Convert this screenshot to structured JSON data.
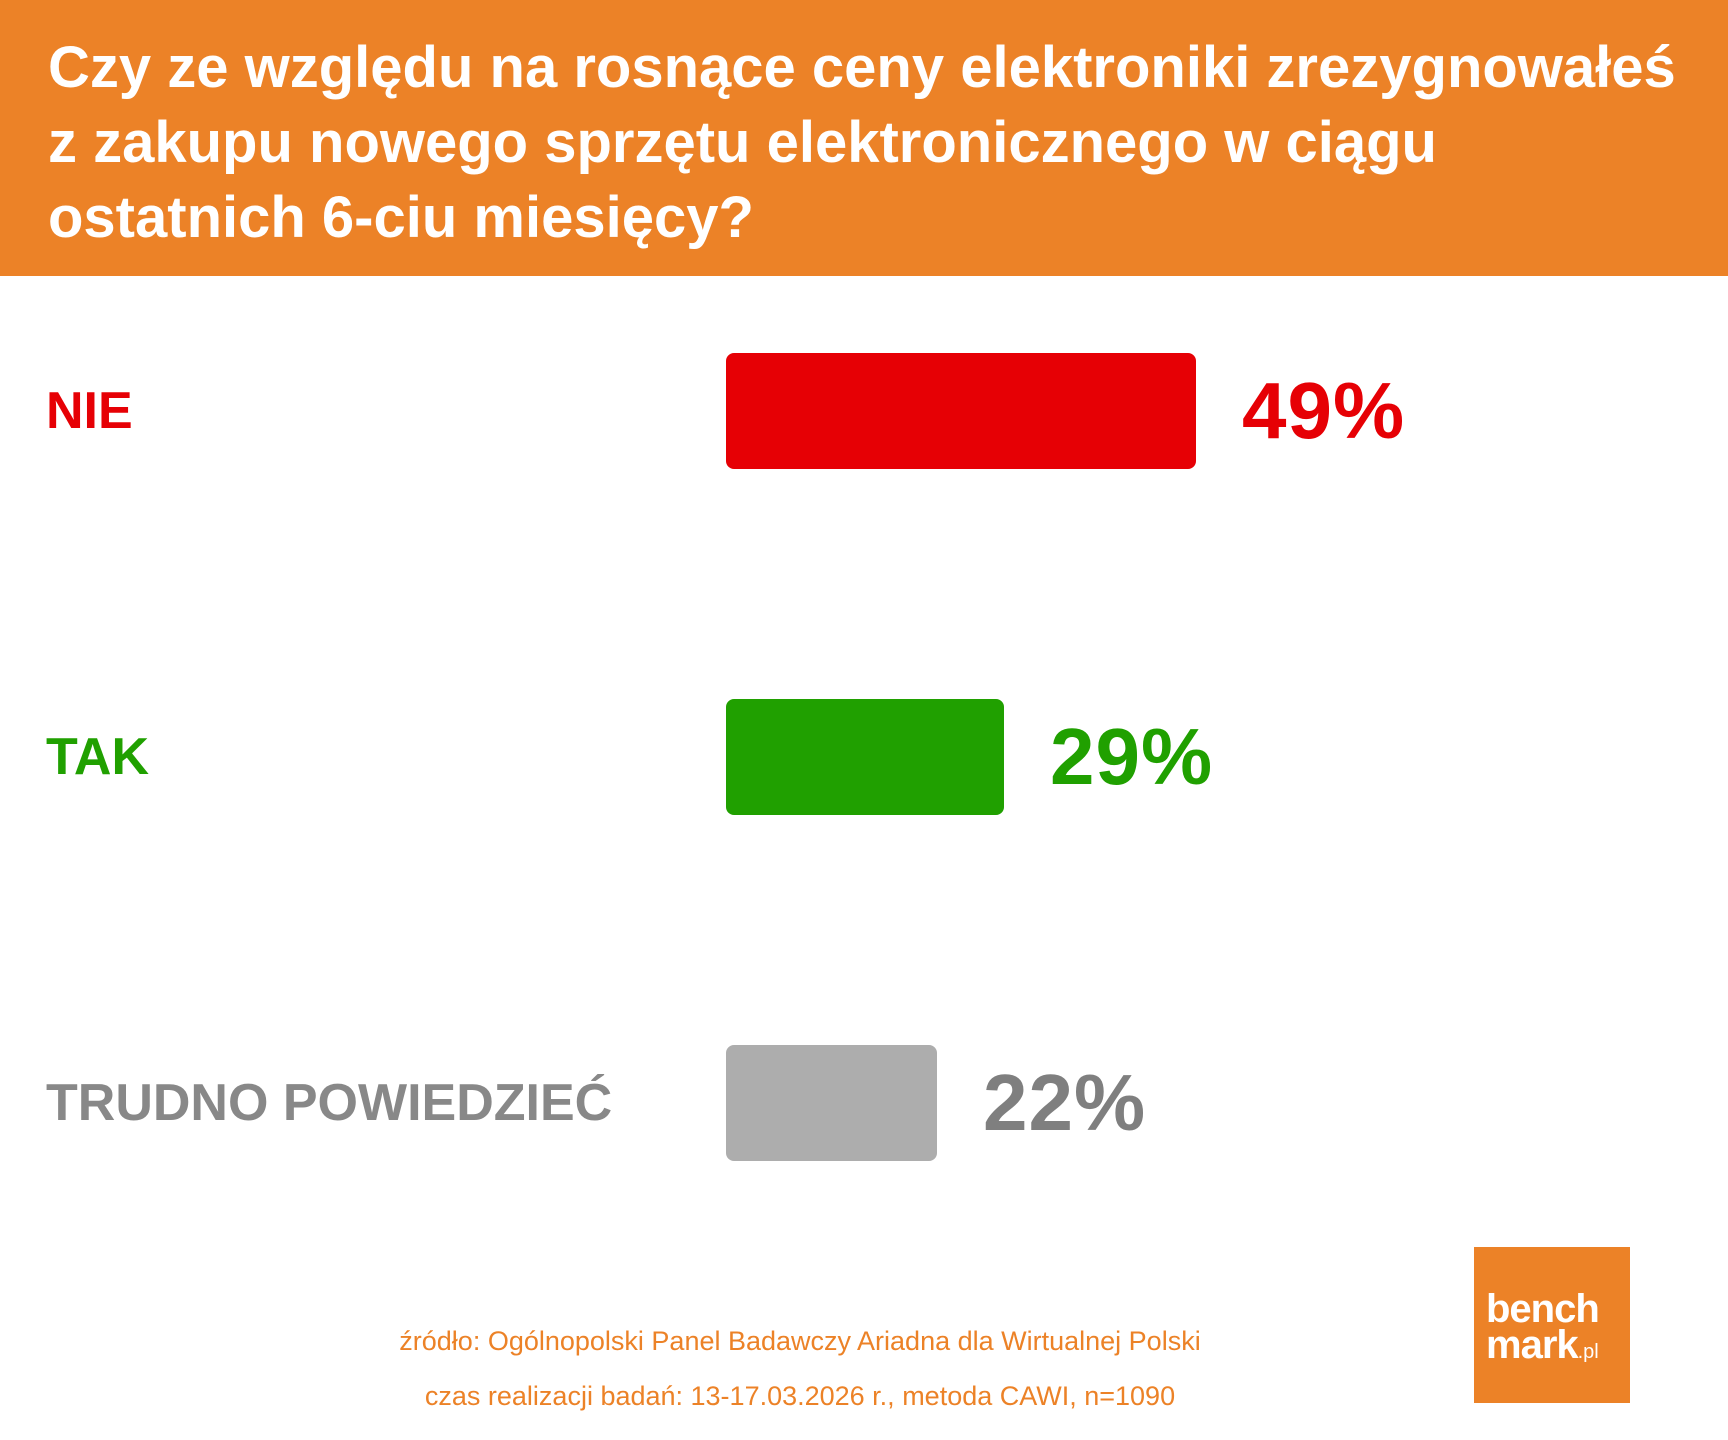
{
  "header": {
    "title": "Czy ze względu na rosnące ceny elektroniki zrezygnowałeś z zakupu nowego sprzętu elektronicznego w ciągu ostatnich 6-ciu miesięcy?"
  },
  "colors": {
    "header_bg": "#ec8227",
    "NIE": "#e60005",
    "TAK": "#20a000",
    "TRUDNO POWIEDZIEĆ": "#adadad",
    "value_gray": "#7f7f7f",
    "label_gray": "#888888"
  },
  "chart_data": {
    "type": "bar",
    "orientation": "horizontal",
    "title": "Czy ze względu na rosnące ceny elektroniki zrezygnowałeś z zakupu nowego sprzętu elektronicznego w ciągu ostatnich 6-ciu miesięcy?",
    "categories": [
      "NIE",
      "TAK",
      "TRUDNO POWIEDZIEĆ"
    ],
    "values": [
      49,
      29,
      22
    ],
    "value_labels": [
      "49%",
      "29%",
      "22%"
    ],
    "unit": "%",
    "xlim": [
      0,
      100
    ],
    "grid": false,
    "legend": "none"
  },
  "footer": {
    "source": "źródło: Ogólnopolski Panel Badawczy Ariadna dla Wirtualnej Polski",
    "details": "czas realizacji badań: 13-17.03.2026 r., metoda CAWI, n=1090"
  },
  "logo": {
    "line1": "bench",
    "line2": "mark",
    "suffix": ".pl"
  }
}
